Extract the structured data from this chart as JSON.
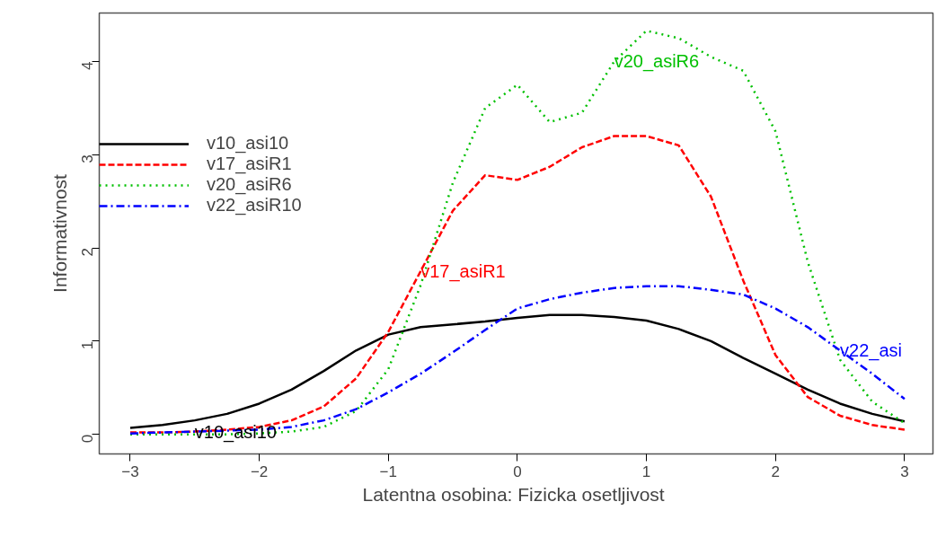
{
  "chart_data": {
    "type": "line",
    "xlabel": "Latentna osobina: Fizicka  osetljivost",
    "ylabel": "Informativnost",
    "x": [
      -3,
      -2.75,
      -2.5,
      -2.25,
      -2,
      -1.75,
      -1.5,
      -1.25,
      -1,
      -0.75,
      -0.5,
      -0.25,
      0,
      0.25,
      0.5,
      0.75,
      1,
      1.25,
      1.5,
      1.75,
      2,
      2.25,
      2.5,
      2.75,
      3
    ],
    "series": [
      {
        "name": "v10_asi10",
        "color": "#000000",
        "line_style": "solid",
        "values": [
          0.07,
          0.1,
          0.15,
          0.22,
          0.33,
          0.48,
          0.68,
          0.9,
          1.07,
          1.15,
          1.18,
          1.21,
          1.25,
          1.28,
          1.28,
          1.26,
          1.22,
          1.13,
          1.0,
          0.82,
          0.65,
          0.48,
          0.33,
          0.22,
          0.14
        ]
      },
      {
        "name": "v17_asiR1",
        "color": "#ff0000",
        "line_style": "dashed",
        "values": [
          0.02,
          0.02,
          0.03,
          0.05,
          0.08,
          0.15,
          0.3,
          0.6,
          1.1,
          1.75,
          2.4,
          2.78,
          2.73,
          2.87,
          3.08,
          3.2,
          3.2,
          3.1,
          2.55,
          1.65,
          0.85,
          0.4,
          0.2,
          0.1,
          0.05
        ]
      },
      {
        "name": "v20_asiR6",
        "color": "#00c000",
        "line_style": "dotted",
        "values": [
          0.0,
          0.0,
          0.0,
          0.0,
          0.01,
          0.03,
          0.08,
          0.25,
          0.7,
          1.6,
          2.7,
          3.5,
          3.75,
          3.35,
          3.45,
          4.0,
          4.33,
          4.25,
          4.05,
          3.9,
          3.25,
          1.85,
          0.8,
          0.35,
          0.12
        ]
      },
      {
        "name": "v22_asiR10",
        "color": "#0000ff",
        "line_style": "dotdash",
        "values": [
          0.01,
          0.02,
          0.03,
          0.04,
          0.05,
          0.08,
          0.15,
          0.27,
          0.45,
          0.65,
          0.88,
          1.12,
          1.35,
          1.45,
          1.52,
          1.57,
          1.59,
          1.59,
          1.55,
          1.5,
          1.35,
          1.15,
          0.9,
          0.65,
          0.38
        ]
      }
    ],
    "annotations": [
      {
        "text": "v10_asi10",
        "x": -2.5,
        "y": 0.03
      },
      {
        "text": "v17_asiR1",
        "x": -0.75,
        "y": 1.75
      },
      {
        "text": "v20_asiR6",
        "x": 0.75,
        "y": 4.0
      },
      {
        "text": "v22_asi",
        "x": 2.5,
        "y": 0.9
      }
    ],
    "xlim": [
      -3.24,
      3.22
    ],
    "ylim": [
      -0.21,
      4.52
    ],
    "xticks": [
      -3,
      -2,
      -1,
      0,
      1,
      2,
      3
    ],
    "yticks": [
      0,
      1,
      2,
      3,
      4
    ],
    "grid": false,
    "legend": "left",
    "marker": "none"
  }
}
